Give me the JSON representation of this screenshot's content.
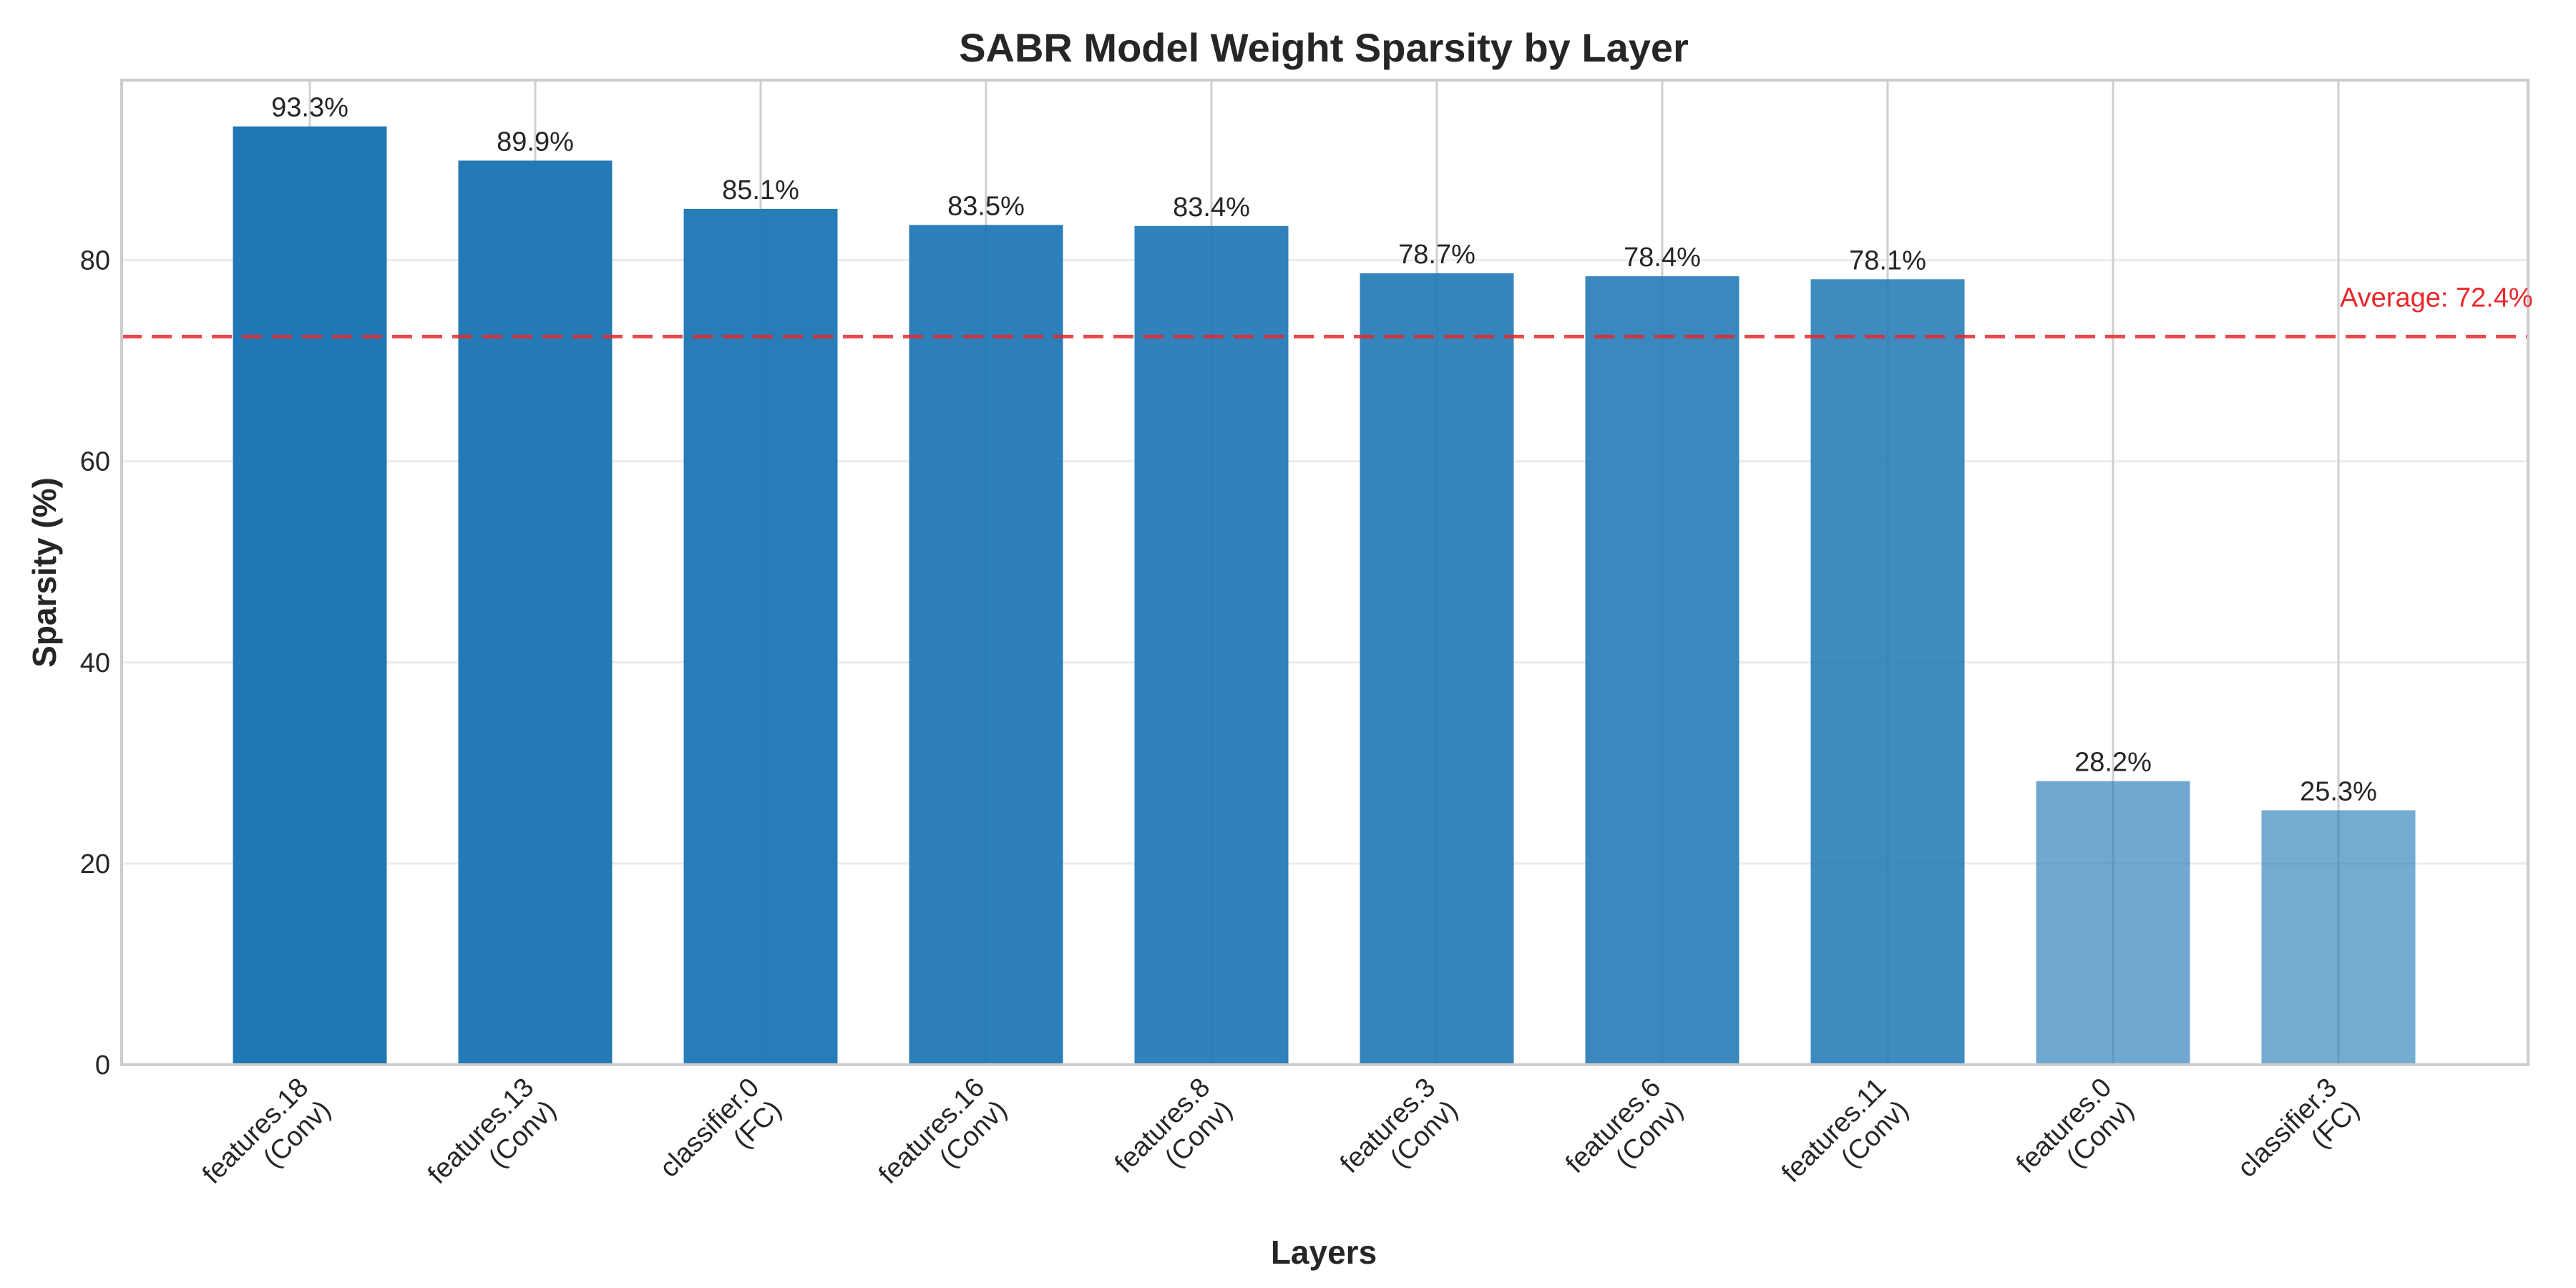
{
  "chart_data": {
    "type": "bar",
    "title": "SABR Model Weight Sparsity by Layer",
    "xlabel": "Layers",
    "ylabel": "Sparsity (%)",
    "ylim": [
      0,
      97.9
    ],
    "yticks": [
      0,
      20,
      40,
      60,
      80
    ],
    "grid": true,
    "categories": [
      {
        "name": "features.18",
        "type": "(Conv)"
      },
      {
        "name": "features.13",
        "type": "(Conv)"
      },
      {
        "name": "classifier.0",
        "type": "(FC)"
      },
      {
        "name": "features.16",
        "type": "(Conv)"
      },
      {
        "name": "features.8",
        "type": "(Conv)"
      },
      {
        "name": "features.3",
        "type": "(Conv)"
      },
      {
        "name": "features.6",
        "type": "(Conv)"
      },
      {
        "name": "features.11",
        "type": "(Conv)"
      },
      {
        "name": "features.0",
        "type": "(Conv)"
      },
      {
        "name": "classifier.3",
        "type": "(FC)"
      }
    ],
    "values": [
      93.3,
      89.9,
      85.1,
      83.5,
      83.4,
      78.7,
      78.4,
      78.1,
      28.2,
      25.3
    ],
    "value_labels": [
      "93.3%",
      "89.9%",
      "85.1%",
      "83.5%",
      "83.4%",
      "78.7%",
      "78.4%",
      "78.1%",
      "28.2%",
      "25.3%"
    ],
    "bar_opacity": [
      1.0,
      0.98,
      0.96,
      0.94,
      0.92,
      0.9,
      0.88,
      0.86,
      0.64,
      0.62
    ],
    "average": {
      "value": 72.4,
      "label": "Average: 72.4%",
      "color": "#e8282b"
    },
    "bar_color": "#1f77b4"
  }
}
